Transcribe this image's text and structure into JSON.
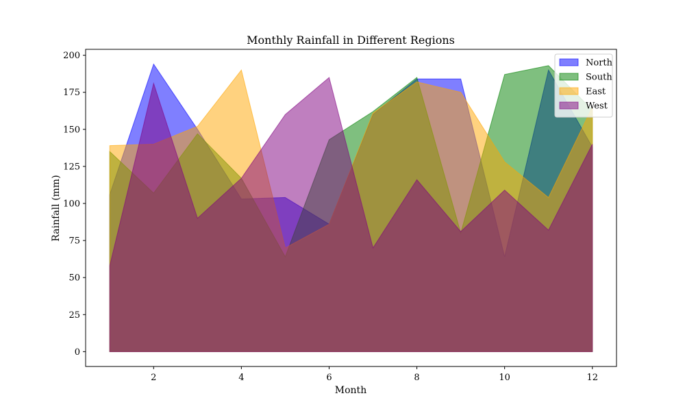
{
  "chart_data": {
    "type": "area",
    "title": "Monthly Rainfall in Different Regions",
    "xlabel": "Month",
    "ylabel": "Rainfall (mm)",
    "xlim": [
      0.45,
      12.55
    ],
    "ylim": [
      -10,
      204
    ],
    "x": [
      1,
      2,
      3,
      4,
      5,
      6,
      7,
      8,
      9,
      10,
      11,
      12
    ],
    "xticks": [
      2,
      4,
      6,
      8,
      10,
      12
    ],
    "yticks": [
      0,
      25,
      50,
      75,
      100,
      125,
      150,
      175,
      200
    ],
    "grid": false,
    "legend_position": "top-right",
    "series": [
      {
        "name": "North",
        "color": "#0000ff",
        "values": [
          106,
          194,
          150,
          103,
          104,
          86,
          160,
          184,
          184,
          64,
          190,
          138
        ]
      },
      {
        "name": "South",
        "color": "#008000",
        "values": [
          135,
          107,
          147,
          117,
          64,
          143,
          162,
          185,
          80,
          187,
          193,
          163
        ]
      },
      {
        "name": "East",
        "color": "#ffa500",
        "values": [
          139,
          140,
          152,
          190,
          70,
          86,
          161,
          182,
          175,
          128,
          104,
          165
        ]
      },
      {
        "name": "West",
        "color": "#800080",
        "values": [
          58,
          181,
          90,
          117,
          160,
          185,
          70,
          116,
          81,
          109,
          82,
          140
        ]
      }
    ],
    "area_opacity": 0.5
  }
}
